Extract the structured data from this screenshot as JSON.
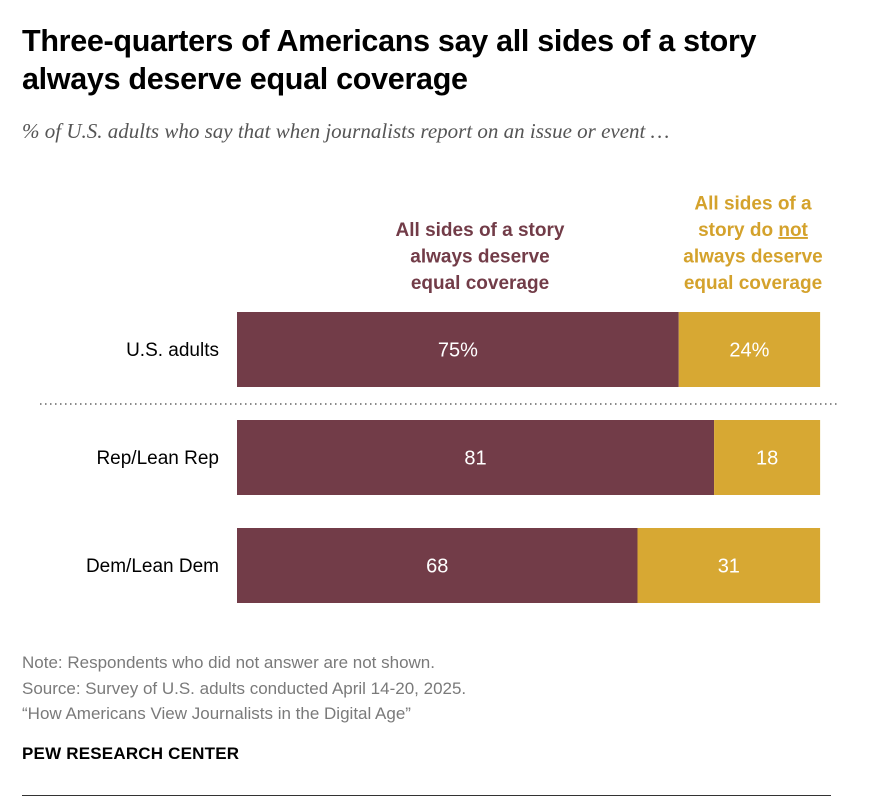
{
  "title": "Three-quarters of Americans say all sides of a story always deserve equal coverage",
  "subtitle": "% of U.S. adults who say that when journalists report on an issue or event …",
  "colors": {
    "always": "#723c48",
    "not_always": "#d7a833",
    "legend_always": "#723c48",
    "legend_not_always": "#d4a22c",
    "bar_text": "#ffffff"
  },
  "chart_data": {
    "type": "bar",
    "orientation": "horizontal",
    "stacked": true,
    "xlim": [
      0,
      100
    ],
    "categories": [
      "U.S. adults",
      "Rep/Lean Rep",
      "Dem/Lean Dem"
    ],
    "series": [
      {
        "name": "All sides of a story always deserve equal coverage",
        "legend_lines": [
          "All sides of a story",
          "always deserve",
          "equal coverage"
        ],
        "values": [
          75,
          81,
          68
        ],
        "labels": [
          "75%",
          "81",
          "68"
        ]
      },
      {
        "name": "All sides of a story do not always deserve equal coverage",
        "legend_lines": [
          "All sides of a",
          "story do |not|",
          "always deserve",
          "equal coverage"
        ],
        "values": [
          24,
          18,
          31
        ],
        "labels": [
          "24%",
          "18",
          "31"
        ]
      }
    ]
  },
  "notes": {
    "note": "Note: Respondents who did not answer are not shown.",
    "source": "Source: Survey of U.S. adults conducted April 14-20, 2025.",
    "report": "“How Americans View Journalists in the Digital Age”"
  },
  "brand": "PEW RESEARCH CENTER"
}
